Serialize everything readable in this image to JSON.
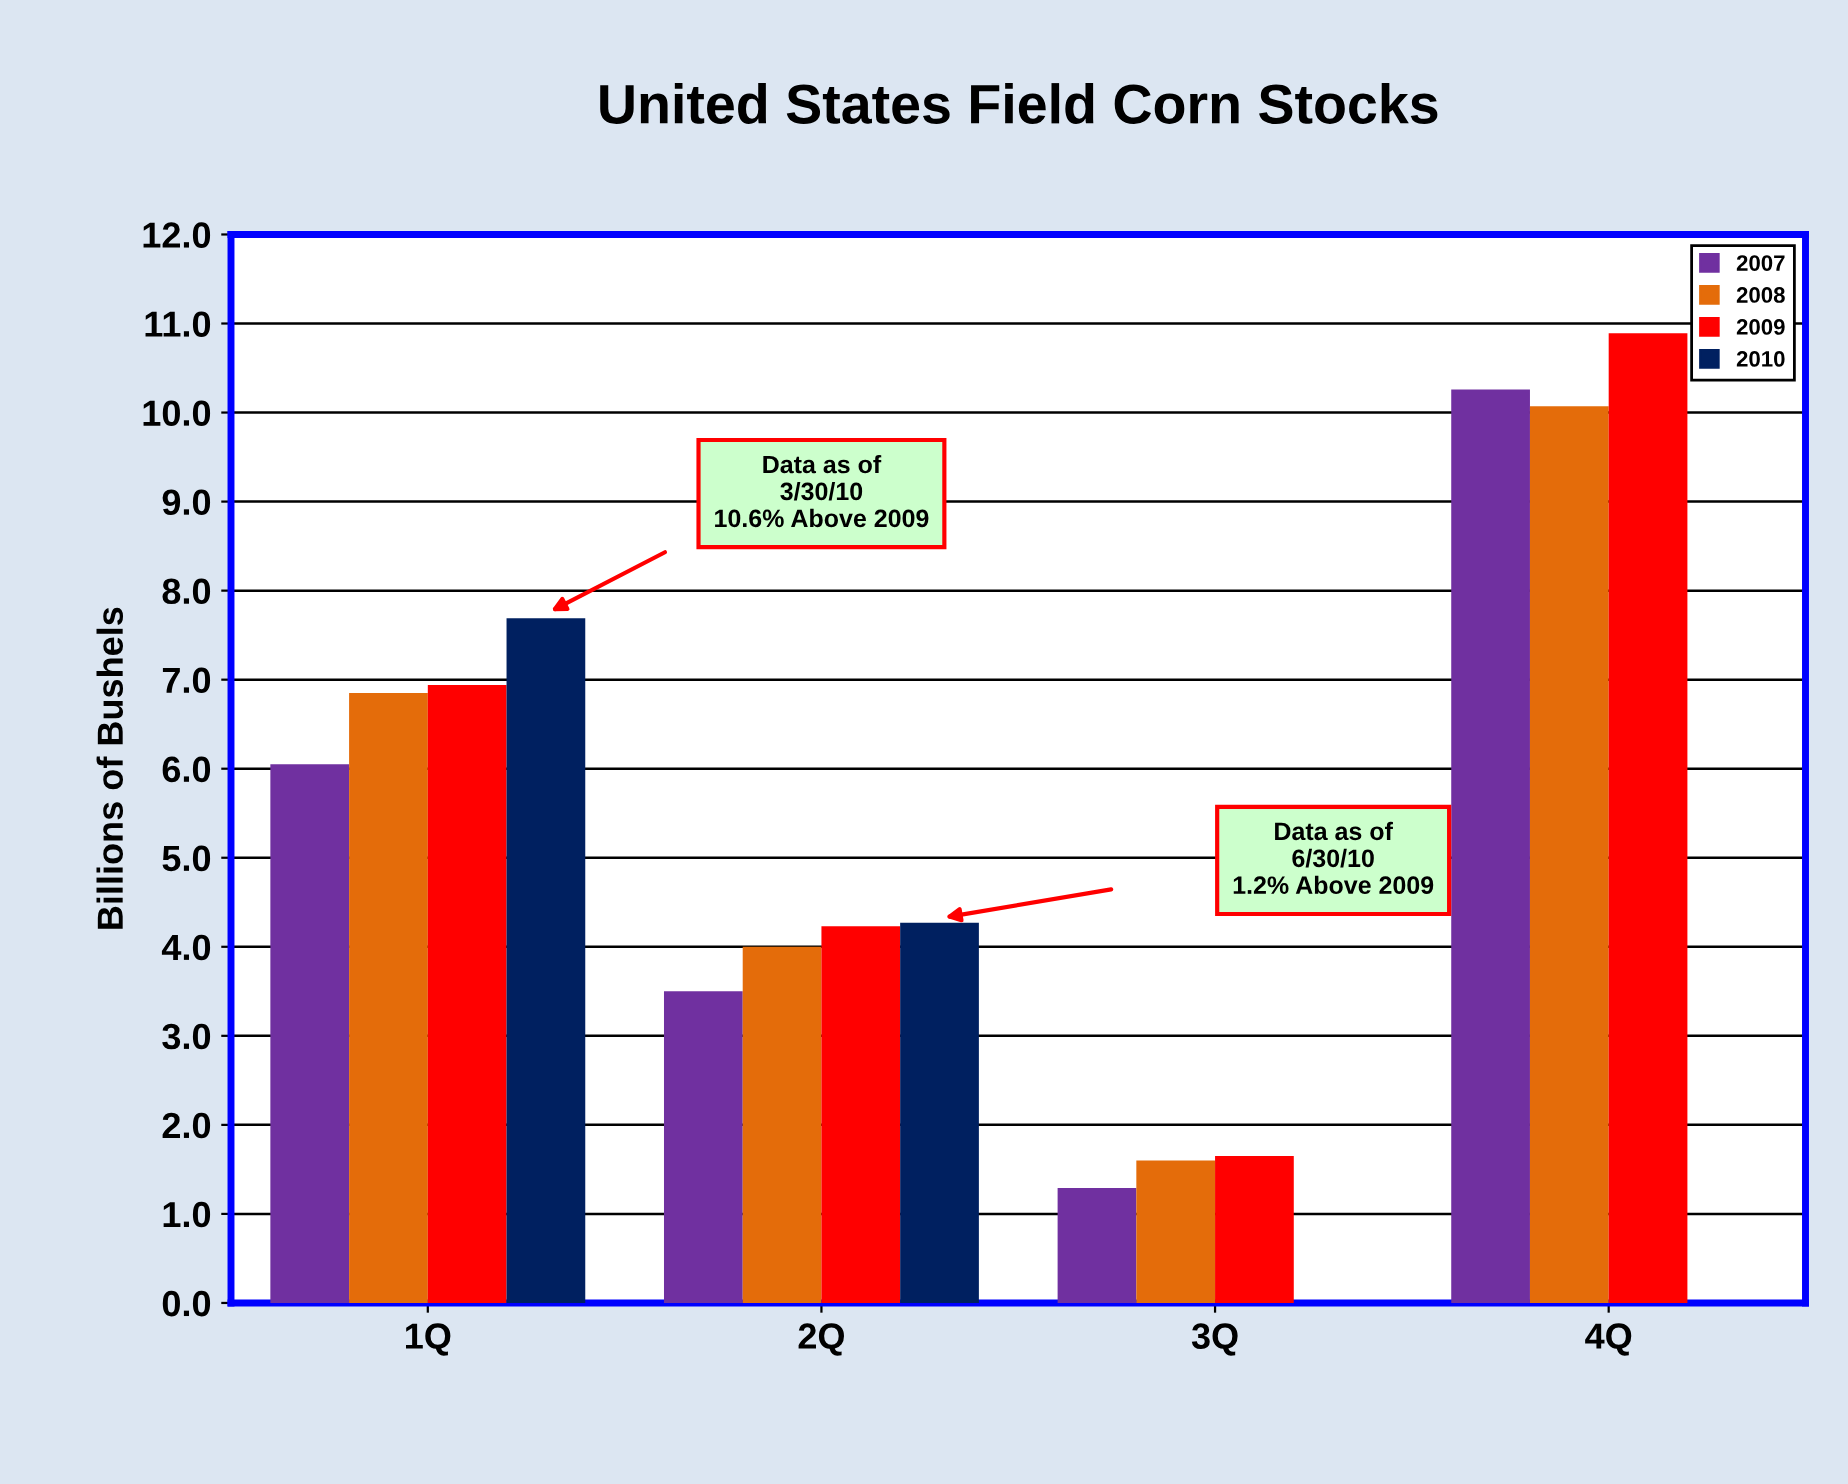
{
  "chart_data": {
    "type": "bar",
    "title": "United States Field Corn Stocks",
    "ylabel": "Billions of Bushels",
    "categories": [
      "1Q",
      "2Q",
      "3Q",
      "4Q"
    ],
    "series": [
      {
        "name": "2007",
        "color": "#7030a0",
        "values": [
          6.05,
          3.5,
          1.29,
          10.26
        ]
      },
      {
        "name": "2008",
        "color": "#e46c0a",
        "values": [
          6.85,
          4.0,
          1.6,
          10.07
        ]
      },
      {
        "name": "2009",
        "color": "#ff0000",
        "values": [
          6.94,
          4.23,
          1.65,
          10.89
        ]
      },
      {
        "name": "2010",
        "color": "#002060",
        "values": [
          7.69,
          4.27,
          null,
          null
        ]
      }
    ],
    "ylim": [
      0,
      12
    ],
    "yticks": [
      {
        "value": 0,
        "label": "0.0"
      },
      {
        "value": 1,
        "label": "1.0"
      },
      {
        "value": 2,
        "label": "2.0"
      },
      {
        "value": 3,
        "label": "3.0"
      },
      {
        "value": 4,
        "label": "4.0"
      },
      {
        "value": 5,
        "label": "5.0"
      },
      {
        "value": 6,
        "label": "6.0"
      },
      {
        "value": 7,
        "label": "7.0"
      },
      {
        "value": 8,
        "label": "8.0"
      },
      {
        "value": 9,
        "label": "9.0"
      },
      {
        "value": 10,
        "label": "10.0"
      },
      {
        "value": 11,
        "label": "11.0"
      },
      {
        "value": 12,
        "label": "12.0"
      }
    ],
    "grid": "y",
    "legend": "top right",
    "annotations": [
      "Data as of\n3/30/10\n10.6% Above 2009",
      "Data as of\n6/30/10\n1.2% Above 2009"
    ]
  }
}
